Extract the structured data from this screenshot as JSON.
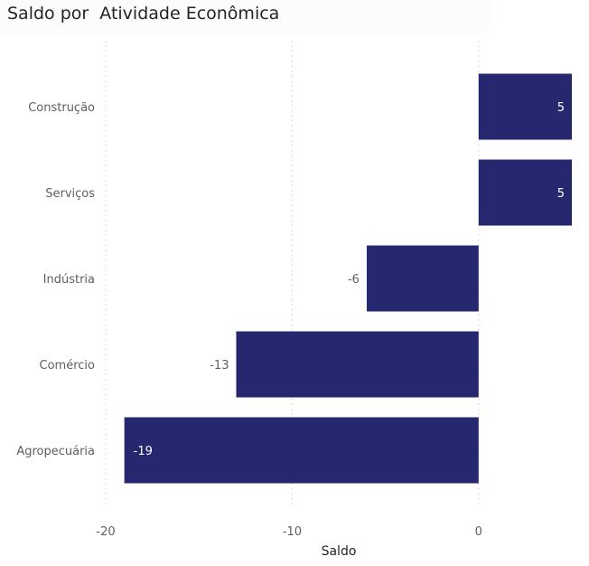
{
  "chart_data": {
    "type": "bar",
    "orientation": "horizontal",
    "title": "Saldo por  Atividade Econômica",
    "xlabel": "Saldo",
    "ylabel": "",
    "categories": [
      "Construção",
      "Serviços",
      "Indústria",
      "Comércio",
      "Agropecuária"
    ],
    "values": [
      5,
      5,
      -6,
      -13,
      -19
    ],
    "xlim": [
      -20,
      5
    ],
    "xticks": [
      -20,
      -10,
      0
    ],
    "grid": true,
    "bar_color": "#26286f",
    "data_labels": true
  }
}
